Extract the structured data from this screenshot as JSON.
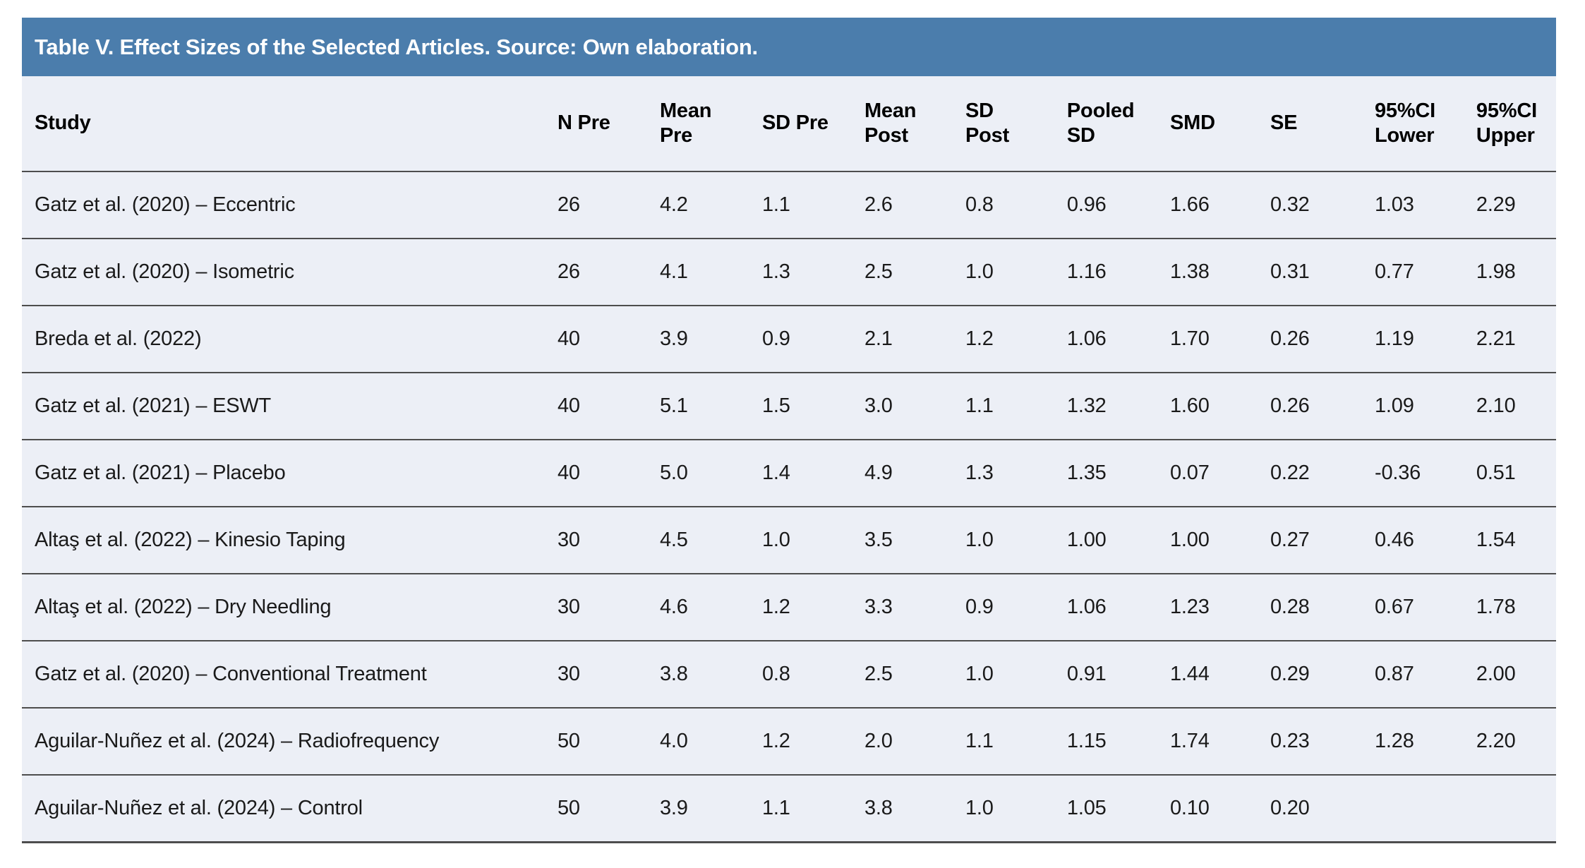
{
  "table": {
    "title": "Table V. Effect Sizes of the Selected Articles. Source: Own elaboration.",
    "colors": {
      "title_bar": "#4B7DAC",
      "body_background": "#ECEFF6",
      "rule": "#4D4D4D",
      "title_text": "#FFFFFF",
      "cell_text": "#1A1A1A"
    },
    "columns": [
      "Study",
      "N Pre",
      "Mean\nPre",
      "SD Pre",
      "Mean\nPost",
      "SD\nPost",
      "Pooled\nSD",
      "SMD",
      "SE",
      "95%CI\nLower",
      "95%CI\nUpper"
    ],
    "rows": [
      [
        "Gatz et al. (2020) – Eccentric",
        "26",
        "4.2",
        "1.1",
        "2.6",
        "0.8",
        "0.96",
        "1.66",
        "0.32",
        "1.03",
        "2.29"
      ],
      [
        "Gatz et al. (2020) – Isometric",
        "26",
        "4.1",
        "1.3",
        "2.5",
        "1.0",
        "1.16",
        "1.38",
        "0.31",
        "0.77",
        "1.98"
      ],
      [
        "Breda et al. (2022)",
        "40",
        "3.9",
        "0.9",
        "2.1",
        "1.2",
        "1.06",
        "1.70",
        "0.26",
        "1.19",
        "2.21"
      ],
      [
        "Gatz et al. (2021) – ESWT",
        "40",
        "5.1",
        "1.5",
        "3.0",
        "1.1",
        "1.32",
        "1.60",
        "0.26",
        "1.09",
        "2.10"
      ],
      [
        "Gatz et al. (2021) – Placebo",
        "40",
        "5.0",
        "1.4",
        "4.9",
        "1.3",
        "1.35",
        "0.07",
        "0.22",
        "-0.36",
        "0.51"
      ],
      [
        "Altaş et al. (2022) – Kinesio Taping",
        "30",
        "4.5",
        "1.0",
        "3.5",
        "1.0",
        "1.00",
        "1.00",
        "0.27",
        "0.46",
        "1.54"
      ],
      [
        "Altaş et al. (2022) – Dry Needling",
        "30",
        "4.6",
        "1.2",
        "3.3",
        "0.9",
        "1.06",
        "1.23",
        "0.28",
        "0.67",
        "1.78"
      ],
      [
        "Gatz et al. (2020) – Conventional Treatment",
        "30",
        "3.8",
        "0.8",
        "2.5",
        "1.0",
        "0.91",
        "1.44",
        "0.29",
        "0.87",
        "2.00"
      ],
      [
        "Aguilar-Nuñez et al. (2024) – Radiofrequency",
        "50",
        "4.0",
        "1.2",
        "2.0",
        "1.1",
        "1.15",
        "1.74",
        "0.23",
        "1.28",
        "2.20"
      ],
      [
        "Aguilar-Nuñez et al. (2024) – Control",
        "50",
        "3.9",
        "1.1",
        "3.8",
        "1.0",
        "1.05",
        "0.10",
        "0.20",
        "",
        ""
      ]
    ]
  }
}
